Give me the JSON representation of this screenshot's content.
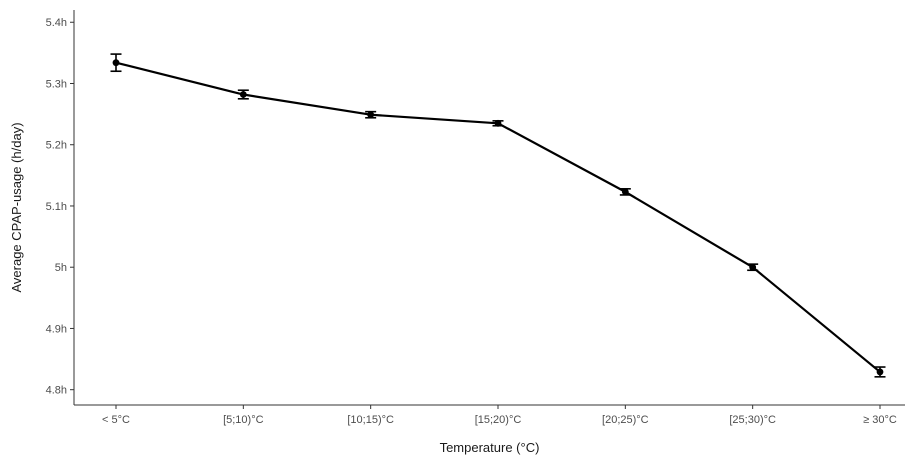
{
  "chart_data": {
    "type": "line",
    "xlabel": "Temperature (°C)",
    "ylabel": "Average CPAP-usage (h/day)",
    "categories": [
      "< 5°C",
      "[5;10)°C",
      "[10;15)°C",
      "[15;20)°C",
      "[20;25)°C",
      "[25;30)°C",
      "≥ 30°C"
    ],
    "yticks": [
      {
        "value": 4.8,
        "label": "4.8h"
      },
      {
        "value": 4.9,
        "label": "4.9h"
      },
      {
        "value": 5.0,
        "label": "5h"
      },
      {
        "value": 5.1,
        "label": "5.1h"
      },
      {
        "value": 5.2,
        "label": "5.2h"
      },
      {
        "value": 5.3,
        "label": "5.3h"
      },
      {
        "value": 5.4,
        "label": "5.4h"
      }
    ],
    "ylim": [
      4.775,
      5.42
    ],
    "grid": false,
    "series": [
      {
        "values": [
          5.334,
          5.282,
          5.249,
          5.235,
          5.123,
          5.0,
          4.829
        ],
        "err_low": [
          5.32,
          5.275,
          5.244,
          5.231,
          5.118,
          4.995,
          4.821
        ],
        "err_high": [
          5.348,
          5.289,
          5.254,
          5.239,
          5.128,
          5.005,
          4.837
        ]
      }
    ]
  }
}
